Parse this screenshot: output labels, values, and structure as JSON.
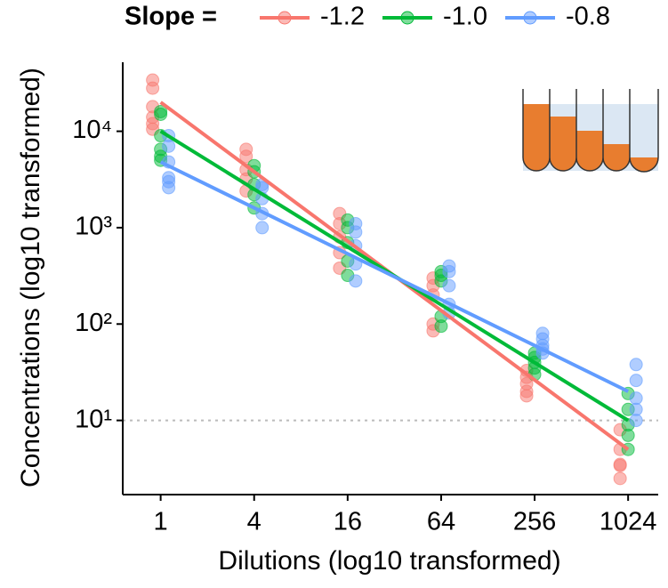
{
  "chart_data": {
    "type": "scatter",
    "legend_title": "Slope =",
    "x_label": "Dilutions (log10 transformed)",
    "y_label": "Concentrations (log10 transformed)",
    "x_log": true,
    "y_log": true,
    "xlim": [
      0.57,
      1600
    ],
    "ylim": [
      1.7,
      52000
    ],
    "xticks": [
      1,
      4,
      16,
      64,
      256,
      1024
    ],
    "yticks": [
      {
        "value": 10,
        "label": "10¹"
      },
      {
        "value": 100,
        "label": "10²"
      },
      {
        "value": 1000,
        "label": "10³"
      },
      {
        "value": 10000,
        "label": "10⁴"
      }
    ],
    "hline": 10,
    "legend_position": "top",
    "series": [
      {
        "name": "-1.2",
        "color": "#F8766D",
        "line_x": [
          1,
          1024
        ],
        "line_values": [
          20000,
          5
        ],
        "x": [
          1,
          1,
          1,
          1,
          1,
          1,
          4,
          4,
          4,
          4,
          4,
          16,
          16,
          16,
          16,
          16,
          64,
          64,
          64,
          64,
          64,
          256,
          256,
          256,
          256,
          256,
          1024,
          1024,
          1024,
          1024,
          1024
        ],
        "values": [
          34000,
          28000,
          18000,
          14000,
          12000,
          10500,
          6500,
          5500,
          4000,
          3200,
          2400,
          1400,
          1100,
          800,
          550,
          380,
          300,
          250,
          200,
          100,
          85,
          33,
          28,
          24,
          20,
          18,
          8,
          5,
          3.5,
          3.4,
          2.5
        ]
      },
      {
        "name": "-1.0",
        "color": "#00BA38",
        "line_x": [
          1,
          1024
        ],
        "line_values": [
          10000,
          10
        ],
        "x": [
          1,
          1,
          1,
          1,
          1,
          1,
          4,
          4,
          4,
          4,
          4,
          16,
          16,
          16,
          16,
          16,
          64,
          64,
          64,
          64,
          64,
          256,
          256,
          256,
          256,
          256,
          1024,
          1024,
          1024,
          1024,
          1024
        ],
        "values": [
          16000,
          15000,
          9000,
          6500,
          5500,
          5000,
          4400,
          3800,
          2800,
          2200,
          1600,
          1200,
          1000,
          700,
          450,
          320,
          350,
          320,
          280,
          120,
          95,
          50,
          45,
          40,
          35,
          30,
          19,
          13,
          9,
          7,
          5
        ]
      },
      {
        "name": "-0.8",
        "color": "#619CFF",
        "line_x": [
          1,
          1024
        ],
        "line_values": [
          4800,
          20
        ],
        "x": [
          1,
          1,
          1,
          1,
          1,
          1,
          4,
          4,
          4,
          4,
          4,
          16,
          16,
          16,
          16,
          16,
          64,
          64,
          64,
          64,
          64,
          256,
          256,
          256,
          256,
          256,
          1024,
          1024,
          1024,
          1024,
          1024
        ],
        "values": [
          9000,
          7000,
          4800,
          3300,
          3000,
          2600,
          2800,
          2600,
          2000,
          1400,
          1000,
          1100,
          900,
          650,
          420,
          280,
          400,
          350,
          250,
          160,
          130,
          80,
          70,
          60,
          55,
          50,
          38,
          26,
          17,
          13,
          10
        ]
      }
    ]
  }
}
